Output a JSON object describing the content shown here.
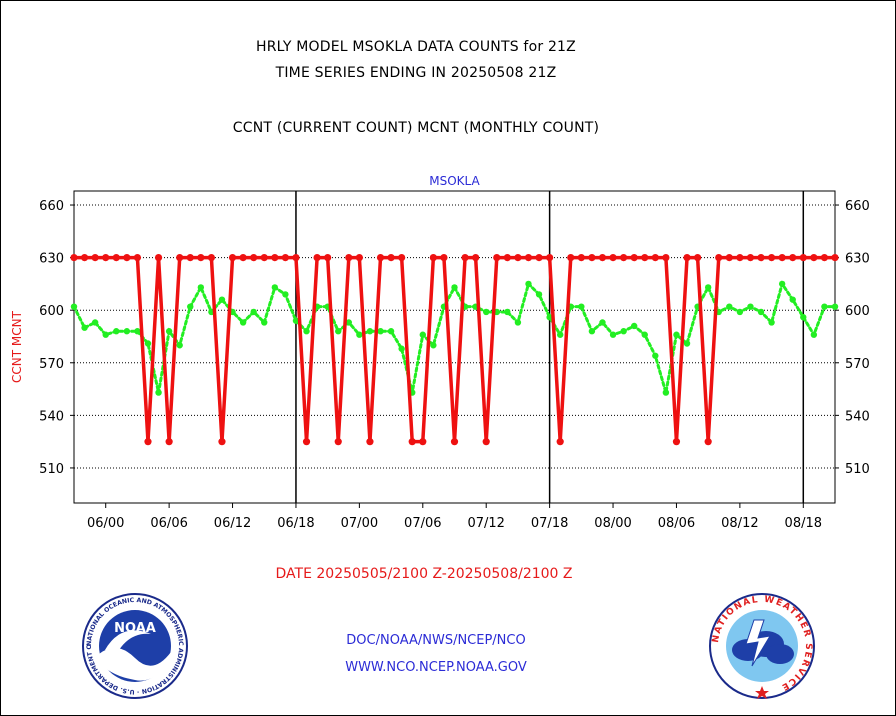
{
  "header": {
    "title_line1": "HRLY MODEL MSOKLA DATA COUNTS for 21Z",
    "title_line2": "TIME SERIES ENDING IN 20250508 21Z",
    "subtitle": "CCNT (CURRENT COUNT) MCNT (MONTHLY COUNT)"
  },
  "footer": {
    "date_range": "DATE 20250505/2100 Z-20250508/2100 Z",
    "org_path": "DOC/NOAA/NWS/NCEP/NCO",
    "website": "WWW.NCO.NCEP.NOAA.GOV"
  },
  "logos": {
    "noaa_text": "NOAA",
    "noaa_ring_text": "NATIONAL OCEANIC AND ATMOSPHERIC ADMINISTRATION · U.S. DEPARTMENT OF COMMERCE",
    "nws_ring_text": "NATIONAL WEATHER SERVICE"
  },
  "colors": {
    "ccnt": "#ee1111",
    "mcnt": "#22ee22",
    "footer_text": "#2b2bd6",
    "date_text": "#e61a1a"
  },
  "chart_data": {
    "type": "line",
    "title": "MSOKLA",
    "ylabel": "CCNT  MCNT",
    "ylim": [
      490,
      668
    ],
    "yticks": [
      510,
      540,
      570,
      600,
      630,
      660
    ],
    "xlim": [
      0,
      72
    ],
    "x_unit": "hours since 2025-05-05 21Z",
    "xticks": [
      {
        "x": 3,
        "label": "06/00"
      },
      {
        "x": 9,
        "label": "06/06"
      },
      {
        "x": 15,
        "label": "06/12"
      },
      {
        "x": 21,
        "label": "06/18"
      },
      {
        "x": 27,
        "label": "07/00"
      },
      {
        "x": 33,
        "label": "07/06"
      },
      {
        "x": 39,
        "label": "07/12"
      },
      {
        "x": 45,
        "label": "07/18"
      },
      {
        "x": 51,
        "label": "08/00"
      },
      {
        "x": 57,
        "label": "08/06"
      },
      {
        "x": 63,
        "label": "08/12"
      },
      {
        "x": 69,
        "label": "08/18"
      }
    ],
    "day_boundaries": [
      21,
      45,
      69
    ],
    "grid": "horizontal-dotted",
    "series": [
      {
        "name": "CCNT",
        "style": "solid",
        "values": [
          630,
          630,
          630,
          630,
          630,
          630,
          630,
          525,
          630,
          525,
          630,
          630,
          630,
          630,
          525,
          630,
          630,
          630,
          630,
          630,
          630,
          630,
          525,
          630,
          630,
          525,
          630,
          630,
          525,
          630,
          630,
          630,
          525,
          525,
          630,
          630,
          525,
          630,
          630,
          525,
          630,
          630,
          630,
          630,
          630,
          630,
          525,
          630,
          630,
          630,
          630,
          630,
          630,
          630,
          630,
          630,
          630,
          525,
          630,
          630,
          525,
          630,
          630,
          630,
          630,
          630,
          630,
          630,
          630,
          630,
          630,
          630,
          630
        ]
      },
      {
        "name": "MCNT",
        "style": "dotted",
        "values": [
          602,
          590,
          593,
          586,
          588,
          588,
          588,
          581,
          553,
          588,
          580,
          602,
          613,
          599,
          606,
          599,
          593,
          599,
          593,
          613,
          609,
          594,
          588,
          602,
          602,
          588,
          593,
          586,
          588,
          588,
          588,
          578,
          553,
          586,
          580,
          602,
          613,
          602,
          602,
          599,
          599,
          599,
          593,
          615,
          609,
          596,
          586,
          602,
          602,
          588,
          593,
          586,
          588,
          591,
          586,
          574,
          553,
          586,
          581,
          602,
          613,
          599,
          602,
          599,
          602,
          599,
          593,
          615,
          606,
          596,
          586,
          602,
          602
        ]
      }
    ]
  }
}
